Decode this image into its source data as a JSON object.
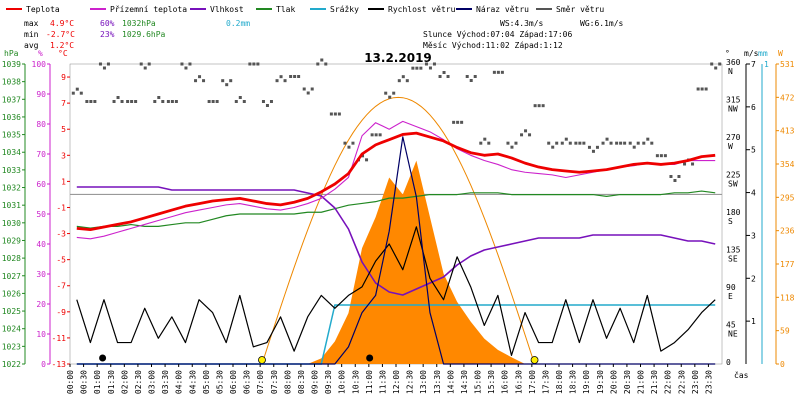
{
  "chart_data": {
    "type": "line",
    "title": "13.2.2019",
    "xlabel": "čas",
    "x_ticks": [
      "00:00",
      "00:30",
      "01:00",
      "01:30",
      "02:00",
      "02:30",
      "03:00",
      "03:30",
      "04:00",
      "04:30",
      "05:00",
      "05:30",
      "06:00",
      "06:30",
      "07:00",
      "07:30",
      "08:00",
      "08:30",
      "09:00",
      "09:30",
      "10:00",
      "10:30",
      "11:00",
      "11:30",
      "12:00",
      "12:30",
      "13:00",
      "13:30",
      "14:00",
      "14:30",
      "15:00",
      "15:30",
      "16:00",
      "16:30",
      "17:00",
      "17:30",
      "18:00",
      "18:30",
      "19:00",
      "19:30",
      "20:00",
      "20:30",
      "21:00",
      "21:30",
      "22:00",
      "22:30",
      "23:00",
      "23:30"
    ],
    "legend": [
      {
        "name": "Teplota",
        "color": "#ee0000"
      },
      {
        "name": "Přízemní teplota",
        "color": "#cc22cc"
      },
      {
        "name": "Vlhkost",
        "color": "#7711bb"
      },
      {
        "name": "Tlak",
        "color": "#228822"
      },
      {
        "name": "Srážky",
        "color": "#22aacc"
      },
      {
        "name": "Rychlost větru",
        "color": "#000000"
      },
      {
        "name": "Náraz větru",
        "color": "#000066"
      },
      {
        "name": "Směr větru",
        "color": "#555555"
      }
    ],
    "stats": {
      "max_label": "max",
      "max_temp": "4.9°C",
      "max_hum": "60%",
      "max_press": "1032hPa",
      "max_rain": "0.2mm",
      "min_label": "min",
      "min_temp": "-2.7°C",
      "min_hum": "23%",
      "min_press": "1029.6hPa",
      "avg_label": "avg",
      "avg_temp": "1.2°C",
      "ws": "WS:4.3m/s",
      "wg": "WG:6.1m/s",
      "sun": "Slunce Východ:07:04  Západ:17:06",
      "moon": "Měsíc  Východ:11:02  Západ:1:12"
    },
    "axes": {
      "hpa_title": "hPa",
      "pct_title": "%",
      "c_title": "°C",
      "deg_title": "°",
      "ms_title": "m/s",
      "mm_title": "mm",
      "w_title": "W",
      "hpa_ticks": [
        "1039",
        "1038",
        "1037",
        "1036",
        "1035",
        "1034",
        "1033",
        "1032",
        "1031",
        "1030",
        "1029",
        "1028",
        "1027",
        "1026",
        "1025",
        "1024",
        "1023",
        "1022"
      ],
      "hpa_ylim": [
        1022,
        1039
      ],
      "pct_ticks": [
        "100",
        "90",
        "80",
        "70",
        "60",
        "50",
        "40",
        "30",
        "20",
        "10",
        "0"
      ],
      "pct_ylim": [
        0,
        100
      ],
      "c_ticks": [
        "9",
        "7",
        "5",
        "3",
        "1",
        "-1",
        "-3",
        "-5",
        "-7",
        "-9",
        "-11",
        "-13"
      ],
      "c_ylim": [
        -13,
        10
      ],
      "dir_ticks": [
        {
          "deg": "360",
          "lab": "N"
        },
        {
          "deg": "315",
          "lab": "NW"
        },
        {
          "deg": "270",
          "lab": "W"
        },
        {
          "deg": "225",
          "lab": "SW"
        },
        {
          "deg": "180",
          "lab": "S"
        },
        {
          "deg": "135",
          "lab": "SE"
        },
        {
          "deg": "90",
          "lab": "E"
        },
        {
          "deg": "45",
          "lab": "NE"
        },
        {
          "deg": "0",
          "lab": ""
        }
      ],
      "ms_ticks": [
        "7",
        "6",
        "5",
        "4",
        "3",
        "2",
        "1"
      ],
      "ms_ylim": [
        0,
        7
      ],
      "mm_ticks": [
        "1"
      ],
      "w_ticks": [
        "531",
        "472",
        "413",
        "354",
        "295",
        "236",
        "177",
        "118",
        "59",
        "0"
      ],
      "w_ylim": [
        0,
        531
      ]
    },
    "series": [
      {
        "name": "Teplota",
        "unit": "°C",
        "values": [
          -2.6,
          -2.7,
          -2.5,
          -2.3,
          -2.1,
          -1.8,
          -1.5,
          -1.2,
          -0.9,
          -0.7,
          -0.5,
          -0.4,
          -0.3,
          -0.5,
          -0.7,
          -0.8,
          -0.6,
          -0.3,
          0.2,
          0.8,
          1.6,
          3.1,
          3.8,
          4.2,
          4.6,
          4.7,
          4.4,
          4.1,
          3.6,
          3.2,
          3.0,
          3.1,
          2.8,
          2.4,
          2.1,
          1.9,
          1.8,
          1.7,
          1.8,
          1.9,
          2.1,
          2.3,
          2.4,
          2.3,
          2.4,
          2.6,
          2.9,
          3.0
        ]
      },
      {
        "name": "Přízemní teplota",
        "unit": "°C",
        "values": [
          -3.3,
          -3.4,
          -3.2,
          -2.9,
          -2.6,
          -2.3,
          -2.0,
          -1.7,
          -1.4,
          -1.2,
          -1.0,
          -0.8,
          -0.7,
          -0.9,
          -1.1,
          -1.2,
          -1.0,
          -0.7,
          -0.3,
          0.4,
          1.3,
          4.5,
          5.5,
          5.0,
          5.6,
          5.2,
          4.8,
          4.2,
          3.5,
          3.0,
          2.6,
          2.3,
          1.9,
          1.7,
          1.6,
          1.5,
          1.3,
          1.5,
          1.7,
          1.9,
          2.1,
          2.2,
          2.4,
          2.3,
          2.3,
          2.6,
          2.6,
          2.6
        ]
      },
      {
        "name": "Vlhkost",
        "unit": "%",
        "values": [
          59,
          59,
          59,
          59,
          59,
          59,
          59,
          58,
          58,
          58,
          58,
          58,
          58,
          58,
          58,
          58,
          58,
          57,
          56,
          52,
          45,
          34,
          27,
          24,
          23,
          25,
          27,
          29,
          33,
          36,
          38,
          39,
          40,
          41,
          42,
          42,
          42,
          42,
          43,
          43,
          43,
          43,
          43,
          43,
          42,
          41,
          41,
          40
        ]
      },
      {
        "name": "Tlak",
        "unit": "hPa",
        "values": [
          1029.8,
          1029.7,
          1029.8,
          1029.8,
          1029.9,
          1029.8,
          1029.8,
          1029.9,
          1030.0,
          1030.0,
          1030.2,
          1030.4,
          1030.5,
          1030.5,
          1030.5,
          1030.5,
          1030.5,
          1030.6,
          1030.6,
          1030.8,
          1031.0,
          1031.1,
          1031.2,
          1031.4,
          1031.4,
          1031.5,
          1031.6,
          1031.6,
          1031.6,
          1031.7,
          1031.7,
          1031.7,
          1031.6,
          1031.6,
          1031.6,
          1031.6,
          1031.6,
          1031.6,
          1031.6,
          1031.5,
          1031.6,
          1031.6,
          1031.6,
          1031.6,
          1031.7,
          1031.7,
          1031.8,
          1031.7
        ]
      },
      {
        "name": "Srážky",
        "unit": "mm",
        "values": [
          0,
          0,
          0,
          0,
          0,
          0,
          0,
          0,
          0,
          0,
          0,
          0,
          0,
          0,
          0,
          0,
          0,
          0,
          0,
          0.2,
          0.2,
          0.2,
          0.2,
          0.2,
          0.2,
          0.2,
          0.2,
          0.2,
          0.2,
          0.2,
          0.2,
          0.2,
          0.2,
          0.2,
          0.2,
          0.2,
          0.2,
          0.2,
          0.2,
          0.2,
          0.2,
          0.2,
          0.2,
          0.2,
          0.2,
          0.2,
          0.2,
          0.2
        ]
      },
      {
        "name": "Rychlost větru",
        "unit": "m/s",
        "values": [
          1.5,
          0.5,
          1.5,
          0.5,
          0.5,
          1.3,
          0.6,
          1.1,
          0.5,
          1.5,
          1.2,
          0.5,
          1.6,
          0.4,
          0.5,
          1.1,
          0.3,
          1.1,
          1.6,
          1.3,
          1.6,
          1.8,
          2.4,
          2.8,
          2.2,
          3.2,
          2.0,
          1.5,
          2.5,
          1.8,
          0.9,
          1.6,
          0.2,
          1.2,
          0.5,
          0.5,
          1.5,
          0.5,
          1.5,
          0.6,
          1.3,
          0.5,
          1.6,
          0.3,
          0.5,
          0.8,
          1.2,
          1.5
        ]
      },
      {
        "name": "Náraz větru",
        "unit": "m/s",
        "values": [
          0,
          0,
          0,
          0,
          0,
          0,
          0,
          0,
          0,
          0,
          0,
          0,
          0,
          0,
          0,
          0,
          0,
          0,
          0,
          0,
          0.4,
          1.2,
          1.6,
          3.1,
          5.3,
          3.9,
          1.2,
          0,
          0,
          0,
          0,
          0,
          0,
          0,
          0,
          0,
          0,
          0,
          0,
          0,
          0,
          0,
          0,
          0,
          0,
          0,
          0,
          0
        ]
      },
      {
        "name": "Směr větru",
        "unit": "°",
        "values": [
          325,
          315,
          360,
          315,
          315,
          360,
          315,
          315,
          360,
          340,
          315,
          340,
          315,
          360,
          315,
          340,
          345,
          330,
          360,
          300,
          265,
          245,
          275,
          325,
          340,
          355,
          360,
          345,
          290,
          345,
          265,
          350,
          265,
          275,
          310,
          265,
          265,
          265,
          260,
          265,
          265,
          265,
          265,
          250,
          225,
          240,
          330,
          360
        ]
      },
      {
        "name": "Solar",
        "unit": "W",
        "values": [
          0,
          0,
          0,
          0,
          0,
          0,
          0,
          0,
          0,
          0,
          0,
          0,
          0,
          0,
          0,
          0,
          0,
          0,
          10,
          40,
          90,
          205,
          260,
          330,
          300,
          360,
          260,
          160,
          110,
          75,
          45,
          25,
          12,
          0,
          0,
          0,
          0,
          0,
          0,
          0,
          0,
          0,
          0,
          0,
          0,
          0,
          0,
          0
        ]
      }
    ]
  }
}
